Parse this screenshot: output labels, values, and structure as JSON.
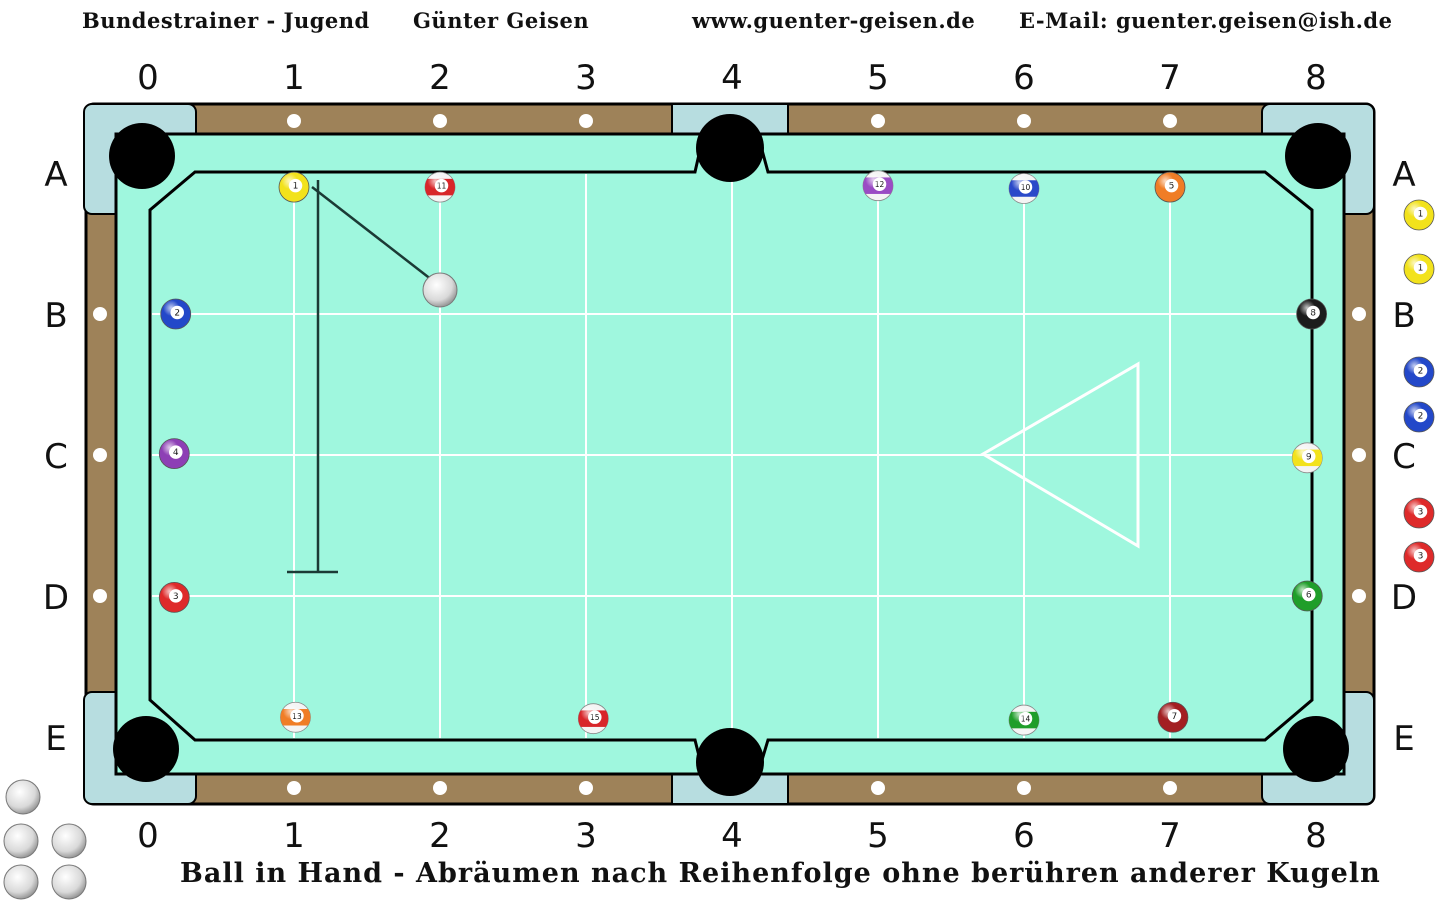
{
  "header": {
    "trainer": "Bundestrainer - Jugend",
    "name": "Günter Geisen",
    "website": "www.guenter-geisen.de",
    "email": "E-Mail: guenter.geisen@ish.de"
  },
  "caption": "Ball in Hand - Abräumen nach Reihenfolge ohne berühren anderer Kugeln",
  "columns": [
    "0",
    "1",
    "2",
    "3",
    "4",
    "5",
    "6",
    "7",
    "8"
  ],
  "rows": [
    "A",
    "B",
    "C",
    "D",
    "E"
  ],
  "colors": {
    "cloth": "#9ff7de",
    "rail": "#9e8259",
    "corner": "#b7dde0",
    "line": "#ffffff",
    "pocket": "#000000"
  },
  "balls": [
    {
      "n": "1",
      "col": 1,
      "row": 0.1,
      "color": "#f2e21c",
      "stripe": false
    },
    {
      "n": "11",
      "col": 2,
      "row": 0.1,
      "color": "#d8262a",
      "stripe": true
    },
    {
      "n": "12",
      "col": 5,
      "row": 0.09,
      "color": "#9a4cc4",
      "stripe": true
    },
    {
      "n": "10",
      "col": 6,
      "row": 0.11,
      "color": "#2a49c9",
      "stripe": true
    },
    {
      "n": "5",
      "col": 7,
      "row": 0.1,
      "color": "#f07d26",
      "stripe": false
    },
    {
      "n": "2",
      "col": 0.19,
      "row": 1.0,
      "color": "#2348c9",
      "stripe": false
    },
    {
      "n": "8",
      "col": 7.97,
      "row": 1.0,
      "color": "#1c1c1c",
      "stripe": false
    },
    {
      "n": "4",
      "col": 0.18,
      "row": 1.99,
      "color": "#8d3fb5",
      "stripe": false
    },
    {
      "n": "9",
      "col": 7.94,
      "row": 2.02,
      "color": "#f2e21c",
      "stripe": true
    },
    {
      "n": "3",
      "col": 0.18,
      "row": 3.01,
      "color": "#de2a2a",
      "stripe": false
    },
    {
      "n": "6",
      "col": 7.94,
      "row": 3.0,
      "color": "#1f9e2a",
      "stripe": false
    },
    {
      "n": "13",
      "col": 1.01,
      "row": 3.86,
      "color": "#f07d26",
      "stripe": true
    },
    {
      "n": "15",
      "col": 3.05,
      "row": 3.87,
      "color": "#d8262a",
      "stripe": true
    },
    {
      "n": "14",
      "col": 6.0,
      "row": 3.88,
      "color": "#1f9e2a",
      "stripe": true
    },
    {
      "n": "7",
      "col": 7.02,
      "row": 3.86,
      "color": "#a31f22",
      "stripe": false
    }
  ],
  "cue_ball": {
    "col": 2.0,
    "row": 0.83
  },
  "legend_balls": [
    {
      "n": "1",
      "color": "#f2e21c"
    },
    {
      "n": "1",
      "color": "#f2e21c"
    },
    {
      "n": "2",
      "color": "#2348c9"
    },
    {
      "n": "2",
      "color": "#2348c9"
    },
    {
      "n": "3",
      "color": "#de2a2a"
    },
    {
      "n": "3",
      "color": "#de2a2a"
    }
  ],
  "spare_cue_balls": 5
}
